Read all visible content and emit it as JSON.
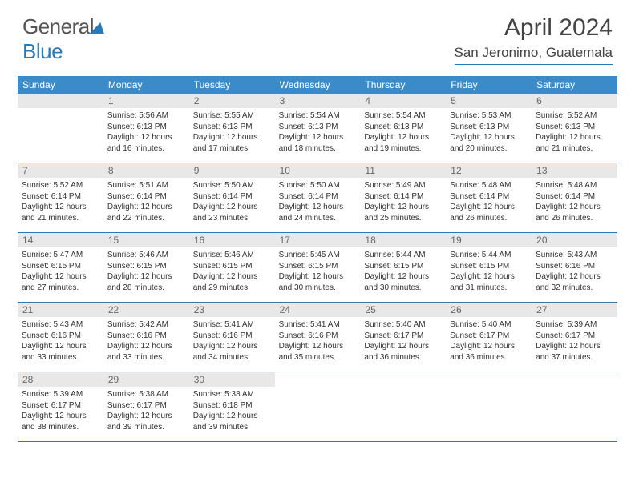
{
  "brand": {
    "part1": "General",
    "part2": "Blue"
  },
  "title": "April 2024",
  "location": "San Jeronimo, Guatemala",
  "colors": {
    "accent": "#3b8bc9",
    "rule": "#2a7ab8",
    "daynum_bg": "#e8e8e8"
  },
  "days_of_week": [
    "Sunday",
    "Monday",
    "Tuesday",
    "Wednesday",
    "Thursday",
    "Friday",
    "Saturday"
  ],
  "weeks": [
    [
      null,
      {
        "n": "1",
        "sr": "5:56 AM",
        "ss": "6:13 PM",
        "dl": "12 hours and 16 minutes."
      },
      {
        "n": "2",
        "sr": "5:55 AM",
        "ss": "6:13 PM",
        "dl": "12 hours and 17 minutes."
      },
      {
        "n": "3",
        "sr": "5:54 AM",
        "ss": "6:13 PM",
        "dl": "12 hours and 18 minutes."
      },
      {
        "n": "4",
        "sr": "5:54 AM",
        "ss": "6:13 PM",
        "dl": "12 hours and 19 minutes."
      },
      {
        "n": "5",
        "sr": "5:53 AM",
        "ss": "6:13 PM",
        "dl": "12 hours and 20 minutes."
      },
      {
        "n": "6",
        "sr": "5:52 AM",
        "ss": "6:13 PM",
        "dl": "12 hours and 21 minutes."
      }
    ],
    [
      {
        "n": "7",
        "sr": "5:52 AM",
        "ss": "6:14 PM",
        "dl": "12 hours and 21 minutes."
      },
      {
        "n": "8",
        "sr": "5:51 AM",
        "ss": "6:14 PM",
        "dl": "12 hours and 22 minutes."
      },
      {
        "n": "9",
        "sr": "5:50 AM",
        "ss": "6:14 PM",
        "dl": "12 hours and 23 minutes."
      },
      {
        "n": "10",
        "sr": "5:50 AM",
        "ss": "6:14 PM",
        "dl": "12 hours and 24 minutes."
      },
      {
        "n": "11",
        "sr": "5:49 AM",
        "ss": "6:14 PM",
        "dl": "12 hours and 25 minutes."
      },
      {
        "n": "12",
        "sr": "5:48 AM",
        "ss": "6:14 PM",
        "dl": "12 hours and 26 minutes."
      },
      {
        "n": "13",
        "sr": "5:48 AM",
        "ss": "6:14 PM",
        "dl": "12 hours and 26 minutes."
      }
    ],
    [
      {
        "n": "14",
        "sr": "5:47 AM",
        "ss": "6:15 PM",
        "dl": "12 hours and 27 minutes."
      },
      {
        "n": "15",
        "sr": "5:46 AM",
        "ss": "6:15 PM",
        "dl": "12 hours and 28 minutes."
      },
      {
        "n": "16",
        "sr": "5:46 AM",
        "ss": "6:15 PM",
        "dl": "12 hours and 29 minutes."
      },
      {
        "n": "17",
        "sr": "5:45 AM",
        "ss": "6:15 PM",
        "dl": "12 hours and 30 minutes."
      },
      {
        "n": "18",
        "sr": "5:44 AM",
        "ss": "6:15 PM",
        "dl": "12 hours and 30 minutes."
      },
      {
        "n": "19",
        "sr": "5:44 AM",
        "ss": "6:15 PM",
        "dl": "12 hours and 31 minutes."
      },
      {
        "n": "20",
        "sr": "5:43 AM",
        "ss": "6:16 PM",
        "dl": "12 hours and 32 minutes."
      }
    ],
    [
      {
        "n": "21",
        "sr": "5:43 AM",
        "ss": "6:16 PM",
        "dl": "12 hours and 33 minutes."
      },
      {
        "n": "22",
        "sr": "5:42 AM",
        "ss": "6:16 PM",
        "dl": "12 hours and 33 minutes."
      },
      {
        "n": "23",
        "sr": "5:41 AM",
        "ss": "6:16 PM",
        "dl": "12 hours and 34 minutes."
      },
      {
        "n": "24",
        "sr": "5:41 AM",
        "ss": "6:16 PM",
        "dl": "12 hours and 35 minutes."
      },
      {
        "n": "25",
        "sr": "5:40 AM",
        "ss": "6:17 PM",
        "dl": "12 hours and 36 minutes."
      },
      {
        "n": "26",
        "sr": "5:40 AM",
        "ss": "6:17 PM",
        "dl": "12 hours and 36 minutes."
      },
      {
        "n": "27",
        "sr": "5:39 AM",
        "ss": "6:17 PM",
        "dl": "12 hours and 37 minutes."
      }
    ],
    [
      {
        "n": "28",
        "sr": "5:39 AM",
        "ss": "6:17 PM",
        "dl": "12 hours and 38 minutes."
      },
      {
        "n": "29",
        "sr": "5:38 AM",
        "ss": "6:17 PM",
        "dl": "12 hours and 39 minutes."
      },
      {
        "n": "30",
        "sr": "5:38 AM",
        "ss": "6:18 PM",
        "dl": "12 hours and 39 minutes."
      },
      null,
      null,
      null,
      null
    ]
  ],
  "labels": {
    "sunrise": "Sunrise:",
    "sunset": "Sunset:",
    "daylight": "Daylight:"
  }
}
